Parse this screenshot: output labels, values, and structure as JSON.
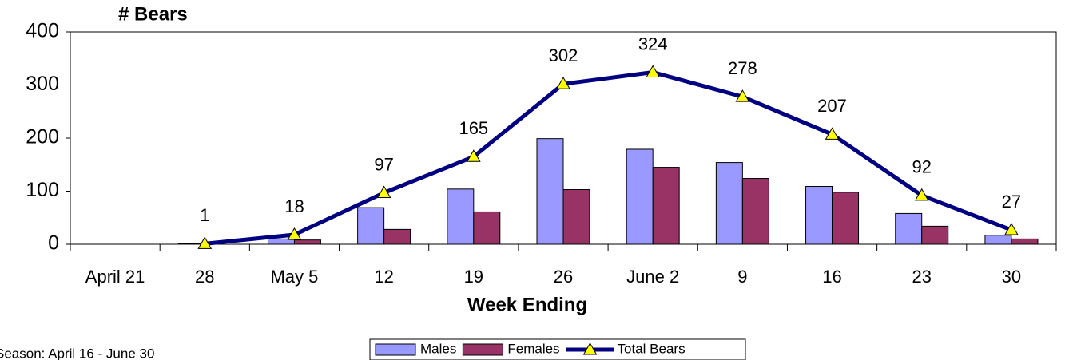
{
  "chart_data": {
    "type": "bar",
    "y_label": "# Bears",
    "x_label": "Week Ending",
    "footnote": "Season: April 16 - June 30",
    "categories": [
      "April 21",
      "28",
      "May 5",
      "12",
      "19",
      "26",
      "June 2",
      "9",
      "16",
      "23",
      "30"
    ],
    "series": [
      {
        "name": "Males",
        "type": "bar",
        "color": "#9999ff",
        "values": [
          0,
          1,
          10,
          69,
          104,
          199,
          179,
          154,
          109,
          58,
          17
        ]
      },
      {
        "name": "Females",
        "type": "bar",
        "color": "#993366",
        "values": [
          0,
          0,
          8,
          28,
          61,
          103,
          145,
          124,
          98,
          34,
          10
        ]
      },
      {
        "name": "Total Bears",
        "type": "line",
        "color": "#000080",
        "marker_color": "#ffff00",
        "values": [
          null,
          1,
          18,
          97,
          165,
          302,
          324,
          278,
          207,
          92,
          27
        ]
      }
    ],
    "ylim": [
      0,
      400
    ],
    "yticks": [
      0,
      100,
      200,
      300,
      400
    ],
    "grid": false,
    "legend": "bottom"
  }
}
